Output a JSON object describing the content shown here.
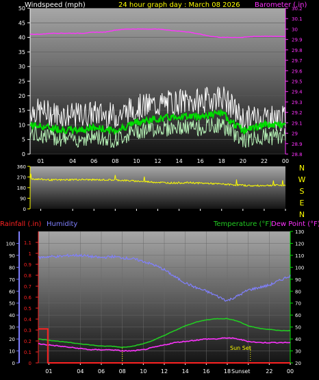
{
  "header": {
    "left_label": "Windspeed (mph)",
    "title": "24 hour graph day : March 08 2026",
    "right_label": "Barometer (.in)"
  },
  "colors": {
    "background": "#000000",
    "plot_top": "#a7a7a7",
    "plot_bottom": "#151515",
    "wind_gust": "#ffffff",
    "wind_avg": "#00dd00",
    "wind_min": "#b8f5b8",
    "barometer": "#ff33ff",
    "direction": "#ffff00",
    "rainfall": "#ff2222",
    "humidity": "#8080ff",
    "temperature": "#22cc22",
    "dewpoint": "#ff33ff",
    "axis_text_white": "#ffffff",
    "axis_yellow": "#ffff00",
    "axis_green": "#00dd00"
  },
  "x_ticks": [
    "01",
    "04",
    "06",
    "08",
    "10",
    "12",
    "14",
    "16",
    "18",
    "20",
    "22",
    "00"
  ],
  "compass": [
    "N",
    "W",
    "S",
    "E",
    "N"
  ],
  "sunset_label": "Sun Set",
  "sunset_tick_label": "Sunset",
  "chart_data": [
    {
      "type": "line",
      "name": "wind-barometer",
      "x_ticks": [
        "01",
        "04",
        "06",
        "08",
        "10",
        "12",
        "14",
        "16",
        "18",
        "20",
        "22",
        "00"
      ],
      "left_axis": {
        "label": "Windspeed (mph)",
        "ticks": [
          0,
          5,
          10,
          15,
          20,
          25,
          30,
          35,
          40,
          45,
          50
        ],
        "range": [
          0,
          50
        ]
      },
      "right_axis": {
        "label": "Barometer (.in)",
        "ticks": [
          "28.8",
          "28.9",
          "29",
          "29.1",
          "29.2",
          "29.3",
          "29.4",
          "29.5",
          "29.6",
          "29.7",
          "29.8",
          "29.9",
          "30",
          "30.1",
          "30.2"
        ],
        "range": [
          28.8,
          30.2
        ]
      },
      "series": [
        {
          "key": "gust",
          "axis": "left",
          "x": [
            0,
            2,
            4,
            6,
            8,
            10,
            12,
            14,
            16,
            18,
            20,
            22,
            24
          ],
          "values": [
            15,
            14,
            13,
            14,
            13,
            16,
            17,
            18,
            18,
            20,
            12,
            13,
            12
          ]
        },
        {
          "key": "avg",
          "axis": "left",
          "x": [
            0,
            2,
            4,
            6,
            8,
            10,
            12,
            14,
            16,
            18,
            20,
            22,
            24
          ],
          "values": [
            10,
            9,
            8,
            9,
            8,
            11,
            12,
            13,
            13,
            14,
            8,
            10,
            10
          ]
        },
        {
          "key": "min",
          "axis": "left",
          "x": [
            0,
            2,
            4,
            6,
            8,
            10,
            12,
            14,
            16,
            18,
            20,
            22,
            24
          ],
          "values": [
            7,
            6,
            5,
            6,
            5,
            8,
            9,
            9,
            9,
            10,
            5,
            6,
            6
          ]
        },
        {
          "key": "baro",
          "axis": "right",
          "x": [
            0,
            1,
            2,
            3,
            4,
            5,
            6,
            7,
            8,
            9,
            10,
            11,
            12,
            13,
            14,
            15,
            16,
            17,
            18,
            19,
            20,
            21,
            22,
            23,
            24
          ],
          "values": [
            29.95,
            29.95,
            29.96,
            29.96,
            29.96,
            29.96,
            29.97,
            29.97,
            29.99,
            30.0,
            30.0,
            30.0,
            30.0,
            29.99,
            29.98,
            29.97,
            29.95,
            29.93,
            29.92,
            29.92,
            29.92,
            29.93,
            29.93,
            29.93,
            29.93
          ]
        }
      ]
    },
    {
      "type": "line",
      "name": "wind-direction",
      "x_ticks": [
        "01",
        "04",
        "06",
        "08",
        "10",
        "12",
        "14",
        "16",
        "18",
        "20",
        "22",
        "00"
      ],
      "left_axis": {
        "ticks": [
          0,
          90,
          180,
          270,
          360
        ],
        "range": [
          0,
          360
        ]
      },
      "right_axis": {
        "ticks": [
          "N",
          "W",
          "S",
          "E",
          "N"
        ]
      },
      "series": [
        {
          "key": "direction",
          "x": [
            0,
            1,
            2,
            3,
            4,
            5,
            6,
            7,
            8,
            9,
            10,
            11,
            12,
            13,
            14,
            15,
            16,
            17,
            18,
            19,
            20,
            21,
            22,
            23,
            24
          ],
          "values": [
            255,
            250,
            245,
            245,
            248,
            248,
            246,
            246,
            245,
            240,
            235,
            230,
            225,
            220,
            220,
            222,
            218,
            215,
            210,
            205,
            200,
            195,
            198,
            200,
            200
          ]
        }
      ]
    },
    {
      "type": "line",
      "name": "rain-humidity-temperature",
      "x_ticks": [
        "01",
        "04",
        "06",
        "08",
        "10",
        "12",
        "14",
        "16",
        "18",
        "20",
        "22",
        "00"
      ],
      "left_axes": [
        {
          "label": "Rainfall (.in)",
          "ticks": [
            "0",
            "0.1",
            "0.2",
            "0.3",
            "0.4",
            "0.5",
            "0.6",
            "0.7",
            "0.8",
            "0.9",
            "1",
            "1.1"
          ],
          "range": [
            0,
            1.2
          ]
        },
        {
          "label": "Humidity",
          "ticks": [
            0,
            10,
            20,
            30,
            40,
            50,
            60,
            70,
            80,
            90,
            100
          ],
          "range": [
            0,
            100
          ]
        }
      ],
      "right_axis": {
        "label": "Temperature (°F) Dew Point (°F)",
        "ticks": [
          20,
          30,
          40,
          50,
          60,
          70,
          80,
          90,
          100,
          110,
          120,
          130
        ],
        "range": [
          20,
          130
        ]
      },
      "labels": {
        "rainfall": "Rainfall (.in)",
        "humidity": "Humidity",
        "temperature": "Temperature (°F)",
        "dewpoint": "Dew Point (°F)"
      },
      "series": [
        {
          "key": "humidity",
          "axis": "humidity",
          "x": [
            0,
            1,
            2,
            3,
            4,
            5,
            6,
            7,
            8,
            9,
            10,
            11,
            12,
            13,
            14,
            15,
            16,
            17,
            18,
            19,
            20,
            21,
            22,
            23,
            24
          ],
          "values": [
            88,
            89,
            89,
            90,
            90,
            89,
            88,
            89,
            88,
            87,
            85,
            82,
            78,
            72,
            67,
            63,
            60,
            56,
            52,
            56,
            61,
            63,
            65,
            69,
            73
          ]
        },
        {
          "key": "temperature",
          "axis": "right",
          "x": [
            0,
            1,
            2,
            3,
            4,
            5,
            6,
            7,
            8,
            9,
            10,
            11,
            12,
            13,
            14,
            15,
            16,
            17,
            18,
            19,
            20,
            21,
            22,
            23,
            24
          ],
          "values": [
            40,
            39,
            38,
            37,
            36,
            35,
            34,
            34,
            33,
            34,
            36,
            39,
            43,
            47,
            51,
            54,
            56,
            57,
            57,
            55,
            51,
            49,
            48,
            47,
            47
          ]
        },
        {
          "key": "dewpoint",
          "axis": "right",
          "x": [
            0,
            1,
            2,
            3,
            4,
            5,
            6,
            7,
            8,
            9,
            10,
            11,
            12,
            13,
            14,
            15,
            16,
            17,
            18,
            19,
            20,
            21,
            22,
            23,
            24
          ],
          "values": [
            36,
            35,
            34,
            33,
            32,
            31,
            31,
            31,
            30,
            30,
            31,
            33,
            35,
            37,
            38,
            39,
            40,
            40,
            41,
            40,
            38,
            37,
            37,
            37,
            37
          ]
        },
        {
          "key": "rainfall",
          "axis": "rainfall",
          "x": [
            0,
            0.9,
            0.9,
            24
          ],
          "values": [
            0.31,
            0.31,
            0.0,
            0.0
          ]
        }
      ]
    }
  ]
}
